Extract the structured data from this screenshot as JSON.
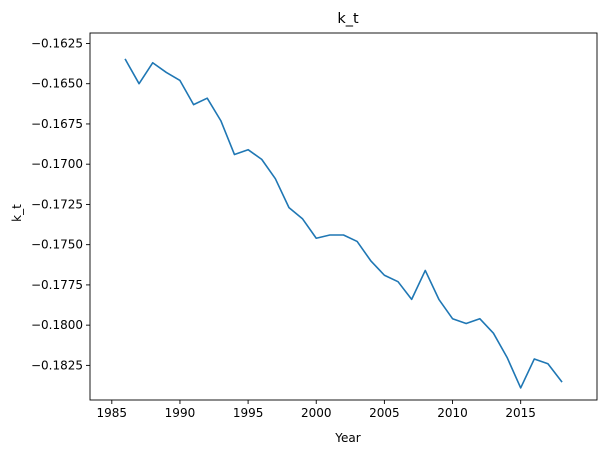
{
  "chart_data": {
    "type": "line",
    "title": "k_t",
    "xlabel": "Year",
    "ylabel": "k_t",
    "xlim": [
      1983.4,
      2020.6
    ],
    "ylim": [
      -0.18465,
      -0.16185
    ],
    "grid": false,
    "legend": "none",
    "line_color": "#1f77b4",
    "x_ticks": [
      1985,
      1990,
      1995,
      2000,
      2005,
      2010,
      2015
    ],
    "x_tick_labels": [
      "1985",
      "1990",
      "1995",
      "2000",
      "2005",
      "2010",
      "2015"
    ],
    "y_ticks": [
      -0.1625,
      -0.165,
      -0.1675,
      -0.17,
      -0.1725,
      -0.175,
      -0.1775,
      -0.18,
      -0.1825
    ],
    "y_tick_labels": [
      "−0.1625",
      "−0.1650",
      "−0.1675",
      "−0.1700",
      "−0.1725",
      "−0.1750",
      "−0.1775",
      "−0.1800",
      "−0.1825"
    ],
    "series": [
      {
        "x": [
          1986,
          1987,
          1988,
          1989,
          1990,
          1991,
          1992,
          1993,
          1994,
          1995,
          1996,
          1997,
          1998,
          1999,
          2000,
          2001,
          2002,
          2003,
          2004,
          2005,
          2006,
          2007,
          2008,
          2009,
          2010,
          2011,
          2012,
          2013,
          2014,
          2015,
          2016,
          2017,
          2018
        ],
        "values": [
          -0.1635,
          -0.165,
          -0.1637,
          -0.1643,
          -0.1648,
          -0.1663,
          -0.1659,
          -0.1673,
          -0.1694,
          -0.1691,
          -0.1697,
          -0.1709,
          -0.1727,
          -0.1734,
          -0.1746,
          -0.1744,
          -0.1744,
          -0.1748,
          -0.176,
          -0.1769,
          -0.1773,
          -0.1784,
          -0.1766,
          -0.1784,
          -0.1796,
          -0.1799,
          -0.1796,
          -0.1805,
          -0.182,
          -0.1839,
          -0.1821,
          -0.1824,
          -0.1835
        ]
      }
    ]
  }
}
